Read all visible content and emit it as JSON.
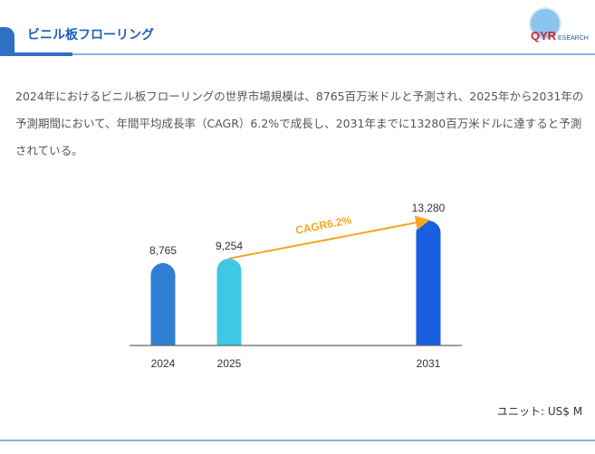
{
  "header": {
    "title": "ビニル板フローリング",
    "logo_text": "QYRESEARCH"
  },
  "description": "2024年におけるビニル板フローリングの世界市場規模は、8765百万米ドルと予測され、2025年から2031年の予測期間において、年間平均成長率（CAGR）6.2%で成長し、2031年までに13280百万米ドルに達すると予測されている。",
  "chart_data": {
    "type": "bar",
    "categories": [
      "2024",
      "2025",
      "2031"
    ],
    "values": [
      8765,
      9254,
      13280
    ],
    "value_labels": [
      "8,765",
      "9,254",
      "13,280"
    ],
    "colors": [
      "#2f7fd4",
      "#3ec8e6",
      "#1a5fe0"
    ],
    "annotation": {
      "text": "CAGR6.2%",
      "from": "2025",
      "to": "2031",
      "color": "#f5a623"
    },
    "unit_label": "ユニット: US$ M",
    "ylim": [
      0,
      13280
    ]
  }
}
